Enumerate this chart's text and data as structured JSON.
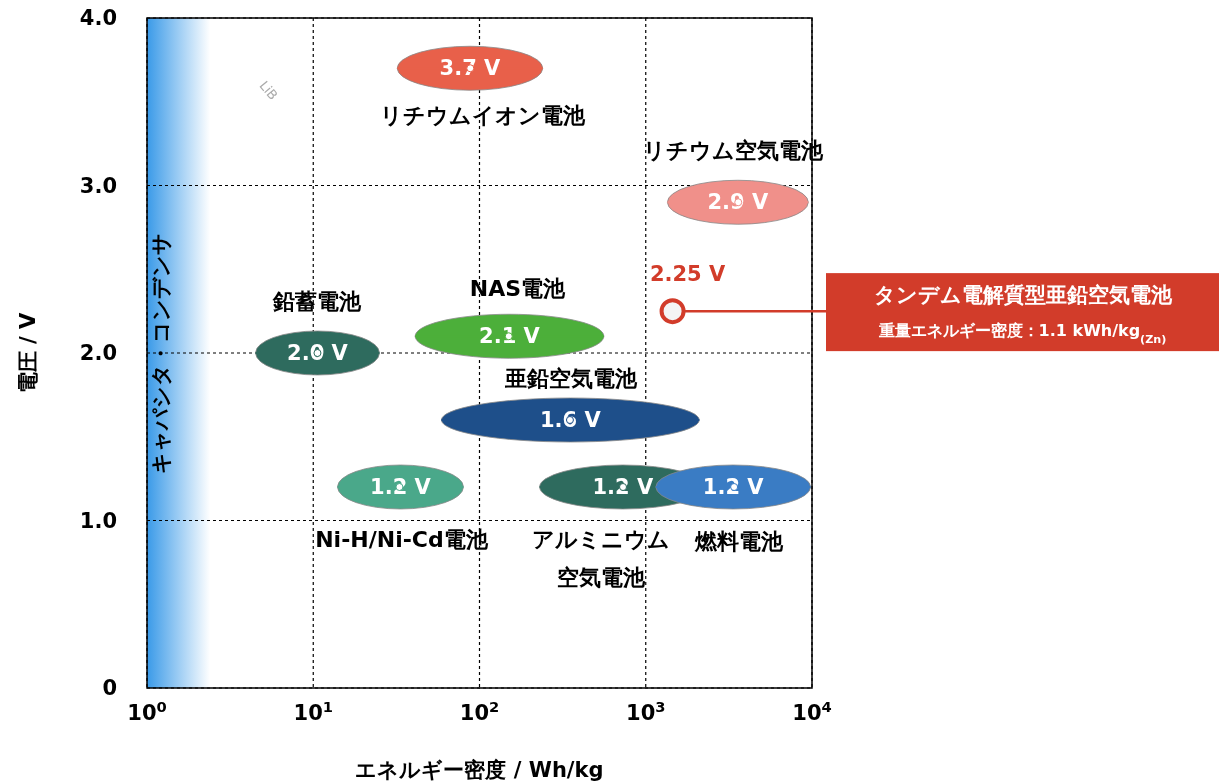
{
  "chart_data": {
    "type": "scatter",
    "xlabel": "エネルギー密度 / Wh/kg",
    "ylabel": "電圧 / V",
    "log": "x",
    "grid": true,
    "marker": "circle",
    "xlim": [
      1,
      10000
    ],
    "xticks": [
      {
        "value": 1,
        "label": "10$^{0}$"
      },
      {
        "value": 10,
        "label": "10$^{1}$"
      },
      {
        "value": 100,
        "label": "10$^{2}$"
      },
      {
        "value": 1000,
        "label": "10$^{3}$"
      },
      {
        "value": 10000,
        "label": "10$^{4}$"
      }
    ],
    "ylim": [
      0,
      4
    ],
    "yticks": [
      0,
      {
        "value": 1,
        "label": "1.0"
      },
      {
        "value": 2,
        "label": "2.0"
      },
      {
        "value": 3,
        "label": "3.0"
      },
      {
        "value": 4,
        "label": "4.0"
      }
    ],
    "bands": [
      {
        "axis": "x",
        "from": 1,
        "to": 2.4,
        "label": "キャパシタ・コンデンサ",
        "color": "#3a9ae8"
      }
    ],
    "series": [
      {
        "name": "リチウムイオン電池",
        "color": "#e8604a",
        "x": [
          88
        ],
        "values": [
          3.7
        ],
        "xerrors": [
          [
            32,
            240
          ]
        ],
        "value_labels": [
          "3.7 V"
        ]
      },
      {
        "name": "リチウム空気電池",
        "color": "#f0908a",
        "x": [
          3600
        ],
        "values": [
          2.9
        ],
        "xerrors": [
          [
            1350,
            9500
          ]
        ],
        "value_labels": [
          "2.9 V"
        ]
      },
      {
        "name": "NAS電池",
        "color": "#4caf3a",
        "x": [
          150
        ],
        "values": [
          2.1
        ],
        "xerrors": [
          [
            41,
            560
          ]
        ],
        "value_labels": [
          "2.1 V"
        ]
      },
      {
        "name": "鉛蓄電池",
        "color": "#2e6b5e",
        "x": [
          10.6
        ],
        "values": [
          2.0
        ],
        "xerrors": [
          [
            4.5,
            25
          ]
        ],
        "value_labels": [
          "2.0 V"
        ]
      },
      {
        "name": "亜鉛空気電池",
        "color": "#1e4f8a",
        "x": [
          350
        ],
        "values": [
          1.6
        ],
        "xerrors": [
          [
            59,
            2100
          ]
        ],
        "value_labels": [
          "1.6 V"
        ]
      },
      {
        "name": "Ni-H/Ni-Cd電池",
        "color": "#4aa88a",
        "x": [
          33
        ],
        "values": [
          1.2
        ],
        "xerrors": [
          [
            14,
            80
          ]
        ],
        "value_labels": [
          "1.2 V"
        ]
      },
      {
        "name": "アルミニウム空気電池",
        "color": "#2e6b5e",
        "x": [
          730
        ],
        "values": [
          1.2
        ],
        "xerrors": [
          [
            230,
            2300
          ]
        ],
        "value_labels": [
          "1.2 V"
        ]
      },
      {
        "name": "燃料電池",
        "color": "#3a7cc4",
        "x": [
          3400
        ],
        "values": [
          1.2
        ],
        "xerrors": [
          [
            1150,
            9800
          ]
        ],
        "value_labels": [
          "1.2 V"
        ]
      },
      {
        "color": "#d23c2a",
        "x": [
          1450
        ],
        "values": [
          2.25
        ],
        "value_labels": [
          "2.25 V"
        ]
      }
    ],
    "annotations": [
      "LiB",
      "タンデム電解質型亜鉛空気電池",
      "重量エネルギー密度：1.1 kWh/kg$_{(Zn)}$"
    ]
  }
}
